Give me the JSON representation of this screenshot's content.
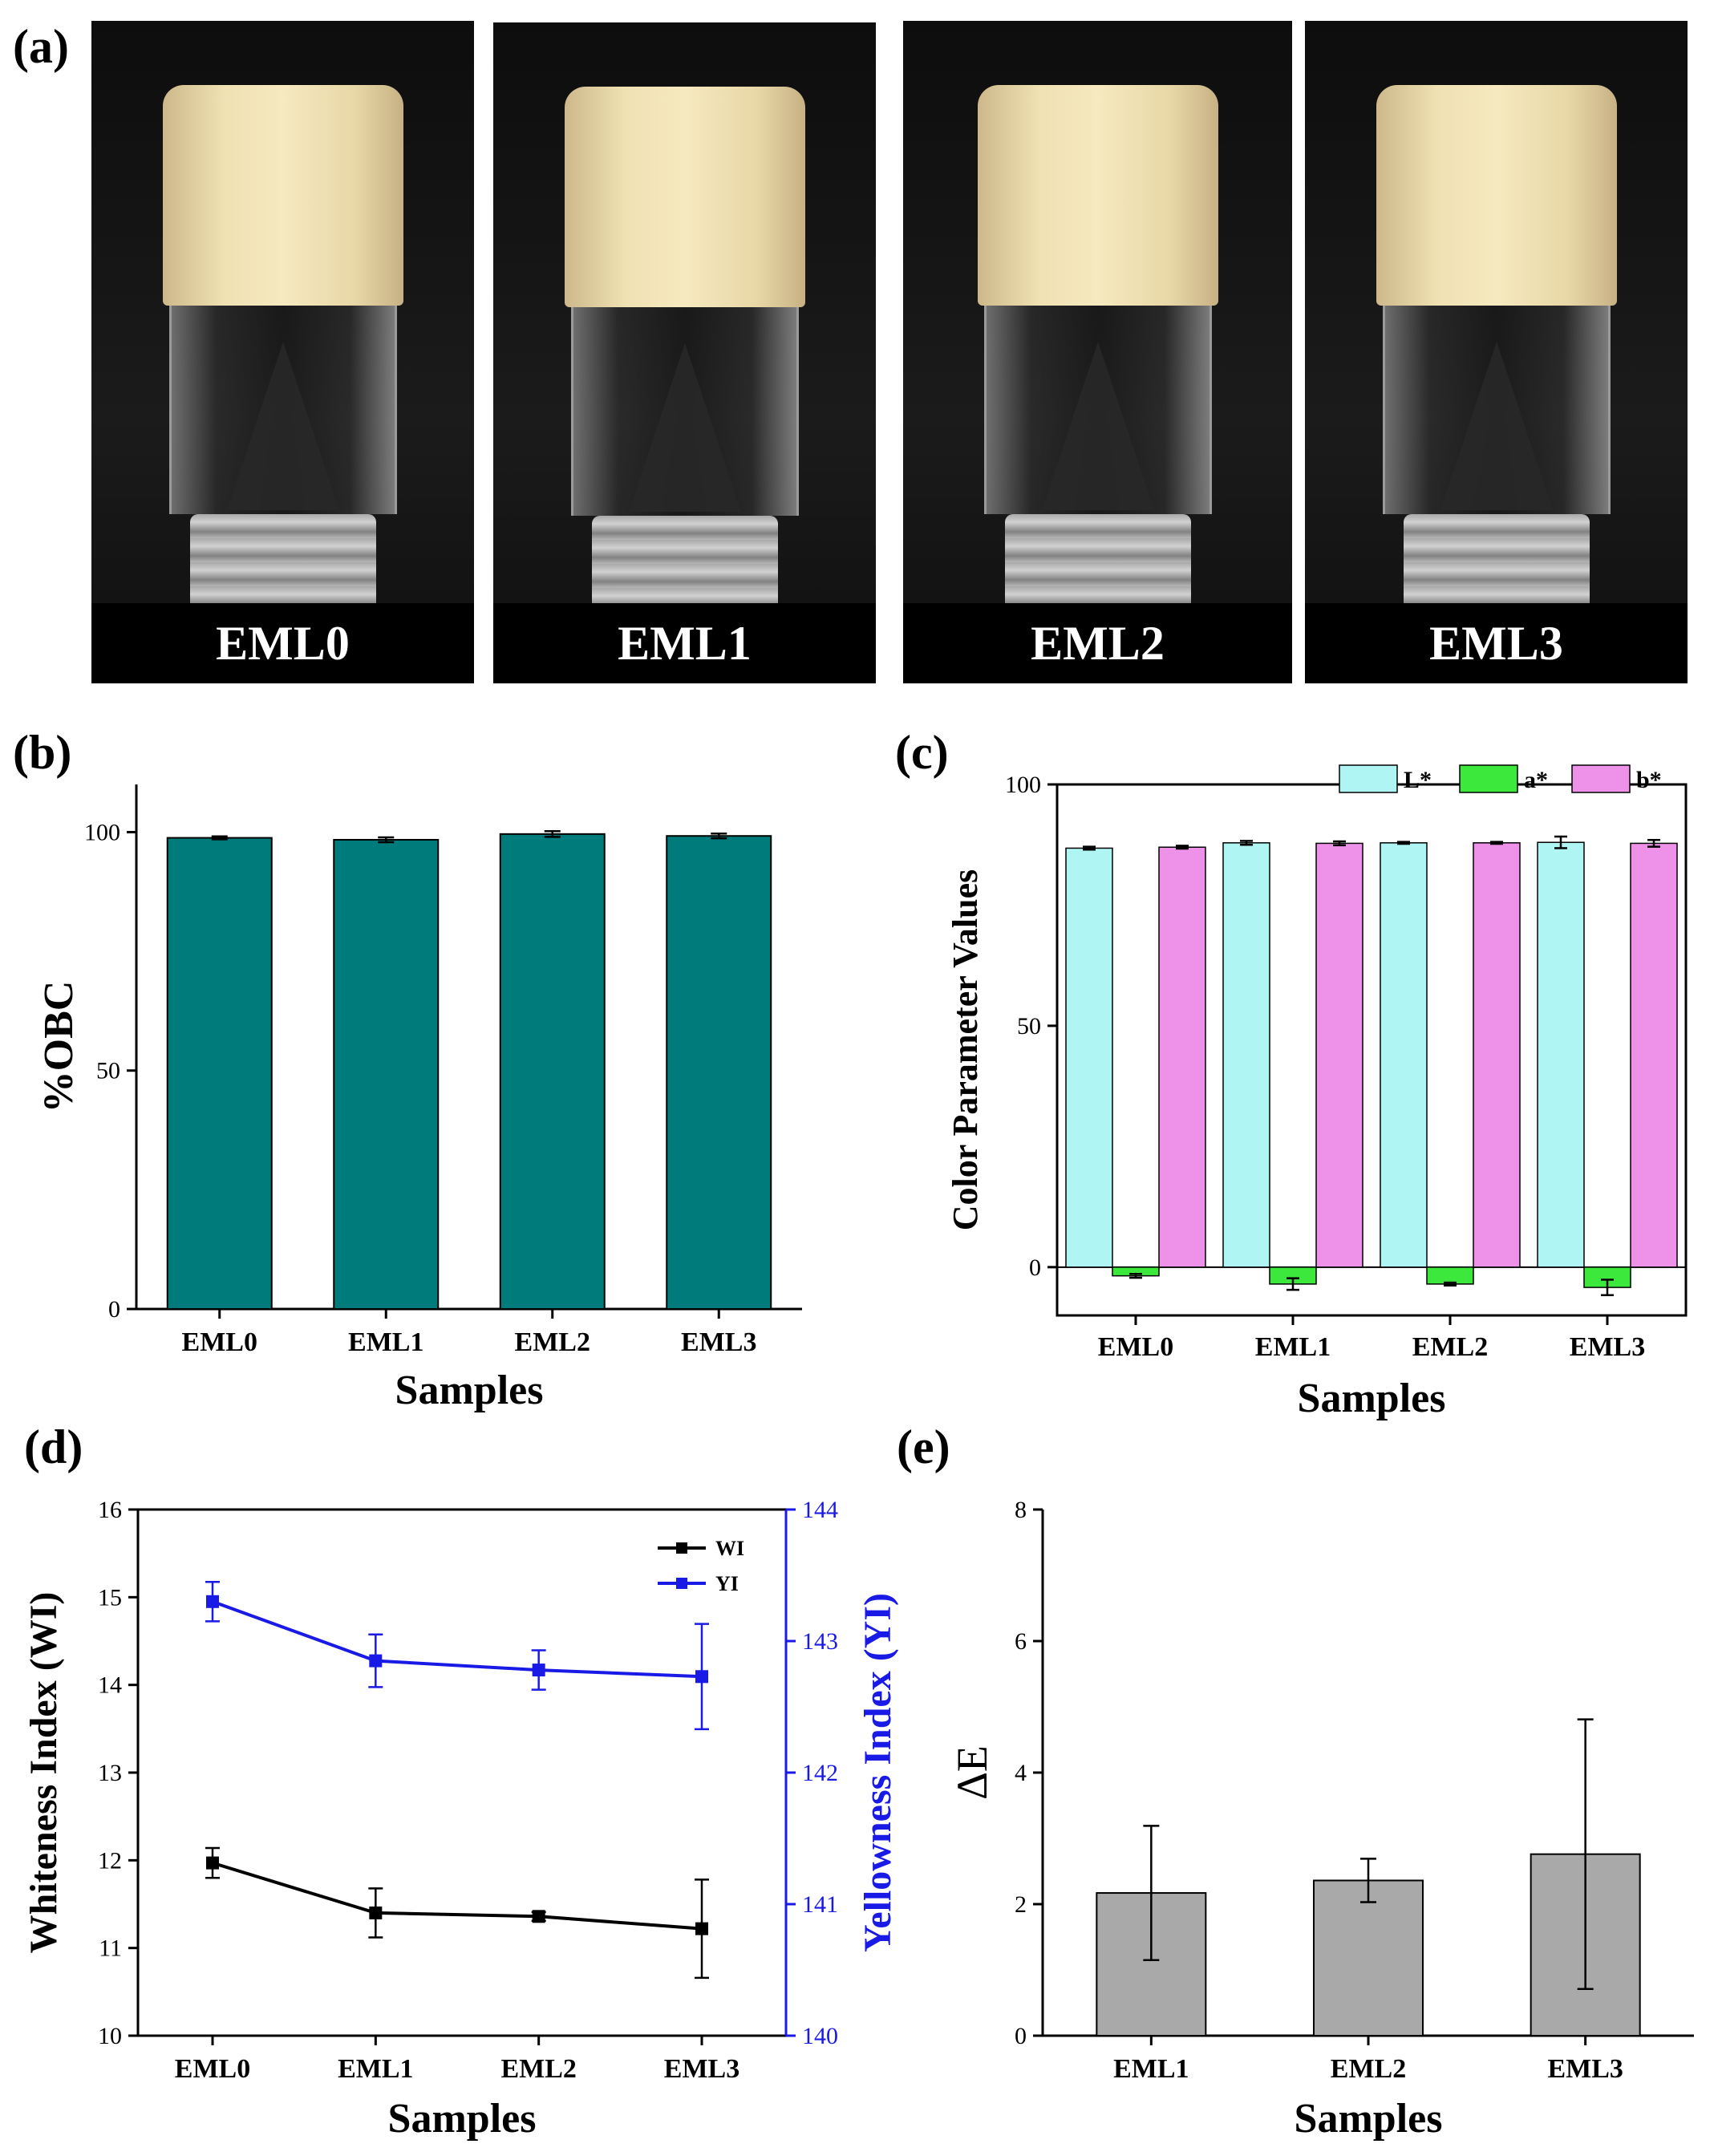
{
  "panels": {
    "a": {
      "letter": "(a)",
      "photos": [
        {
          "label": "EML0"
        },
        {
          "label": "EML1"
        },
        {
          "label": "EML2"
        },
        {
          "label": "EML3"
        }
      ]
    },
    "b": {
      "letter": "(b)"
    },
    "c": {
      "letter": "(c)"
    },
    "d": {
      "letter": "(d)"
    },
    "e": {
      "letter": "(e)"
    }
  },
  "colors": {
    "teal": "#007B7B",
    "cyan": "#AEF5F3",
    "green": "#3CE83C",
    "pink": "#EE91E8",
    "gray_bar": "#A9A9A9",
    "wi_line": "#000000",
    "yi_line": "#1A1AE6"
  },
  "chart_data": [
    {
      "id": "b",
      "type": "bar",
      "categories": [
        "EML0",
        "EML1",
        "EML2",
        "EML3"
      ],
      "values": [
        98.8,
        98.4,
        99.6,
        99.2
      ],
      "errors": [
        0.3,
        0.5,
        0.6,
        0.5
      ],
      "xlabel": "Samples",
      "ylabel": "%OBC",
      "ylim": [
        0,
        110
      ],
      "yticks": [
        0,
        50,
        100
      ]
    },
    {
      "id": "c",
      "type": "bar",
      "categories": [
        "EML0",
        "EML1",
        "EML2",
        "EML3"
      ],
      "series": [
        {
          "name": "L*",
          "values": [
            86.8,
            87.9,
            87.9,
            88.0
          ],
          "errors": [
            0.3,
            0.4,
            0.2,
            1.2
          ]
        },
        {
          "name": "a*",
          "values": [
            -1.8,
            -3.5,
            -3.5,
            -4.2
          ],
          "errors": [
            0.4,
            1.2,
            0.3,
            1.6
          ]
        },
        {
          "name": "b*",
          "values": [
            87.0,
            87.8,
            87.9,
            87.8
          ],
          "errors": [
            0.3,
            0.4,
            0.2,
            0.7
          ]
        }
      ],
      "xlabel": "Samples",
      "ylabel": "Color Parameter Values",
      "ylim": [
        -10,
        100
      ],
      "yticks": [
        0,
        50,
        100
      ],
      "legend": "top-right"
    },
    {
      "id": "d",
      "type": "line",
      "categories": [
        "EML0",
        "EML1",
        "EML2",
        "EML3"
      ],
      "series": [
        {
          "name": "WI",
          "axis": "left",
          "values": [
            11.97,
            11.4,
            11.36,
            11.22
          ],
          "errors": [
            0.17,
            0.28,
            0.05,
            0.56
          ]
        },
        {
          "name": "YI",
          "axis": "right",
          "values": [
            143.3,
            142.85,
            142.78,
            142.73
          ],
          "errors": [
            0.15,
            0.2,
            0.15,
            0.4
          ]
        }
      ],
      "xlabel": "Samples",
      "ylabel": "Whiteness Index (WI)",
      "y2label": "Yellowness Index (YI)",
      "ylim": [
        10,
        16
      ],
      "y2lim": [
        140,
        144
      ],
      "yticks": [
        10,
        11,
        12,
        13,
        14,
        15,
        16
      ],
      "y2ticks": [
        140,
        141,
        142,
        143,
        144
      ],
      "legend": "top-right"
    },
    {
      "id": "e",
      "type": "bar",
      "categories": [
        "EML1",
        "EML2",
        "EML3"
      ],
      "values": [
        2.17,
        2.36,
        2.76
      ],
      "errors": [
        1.02,
        0.33,
        2.05
      ],
      "xlabel": "Samples",
      "ylabel": "ΔE",
      "ylim": [
        0,
        8
      ],
      "yticks": [
        0,
        2,
        4,
        6,
        8
      ]
    }
  ]
}
